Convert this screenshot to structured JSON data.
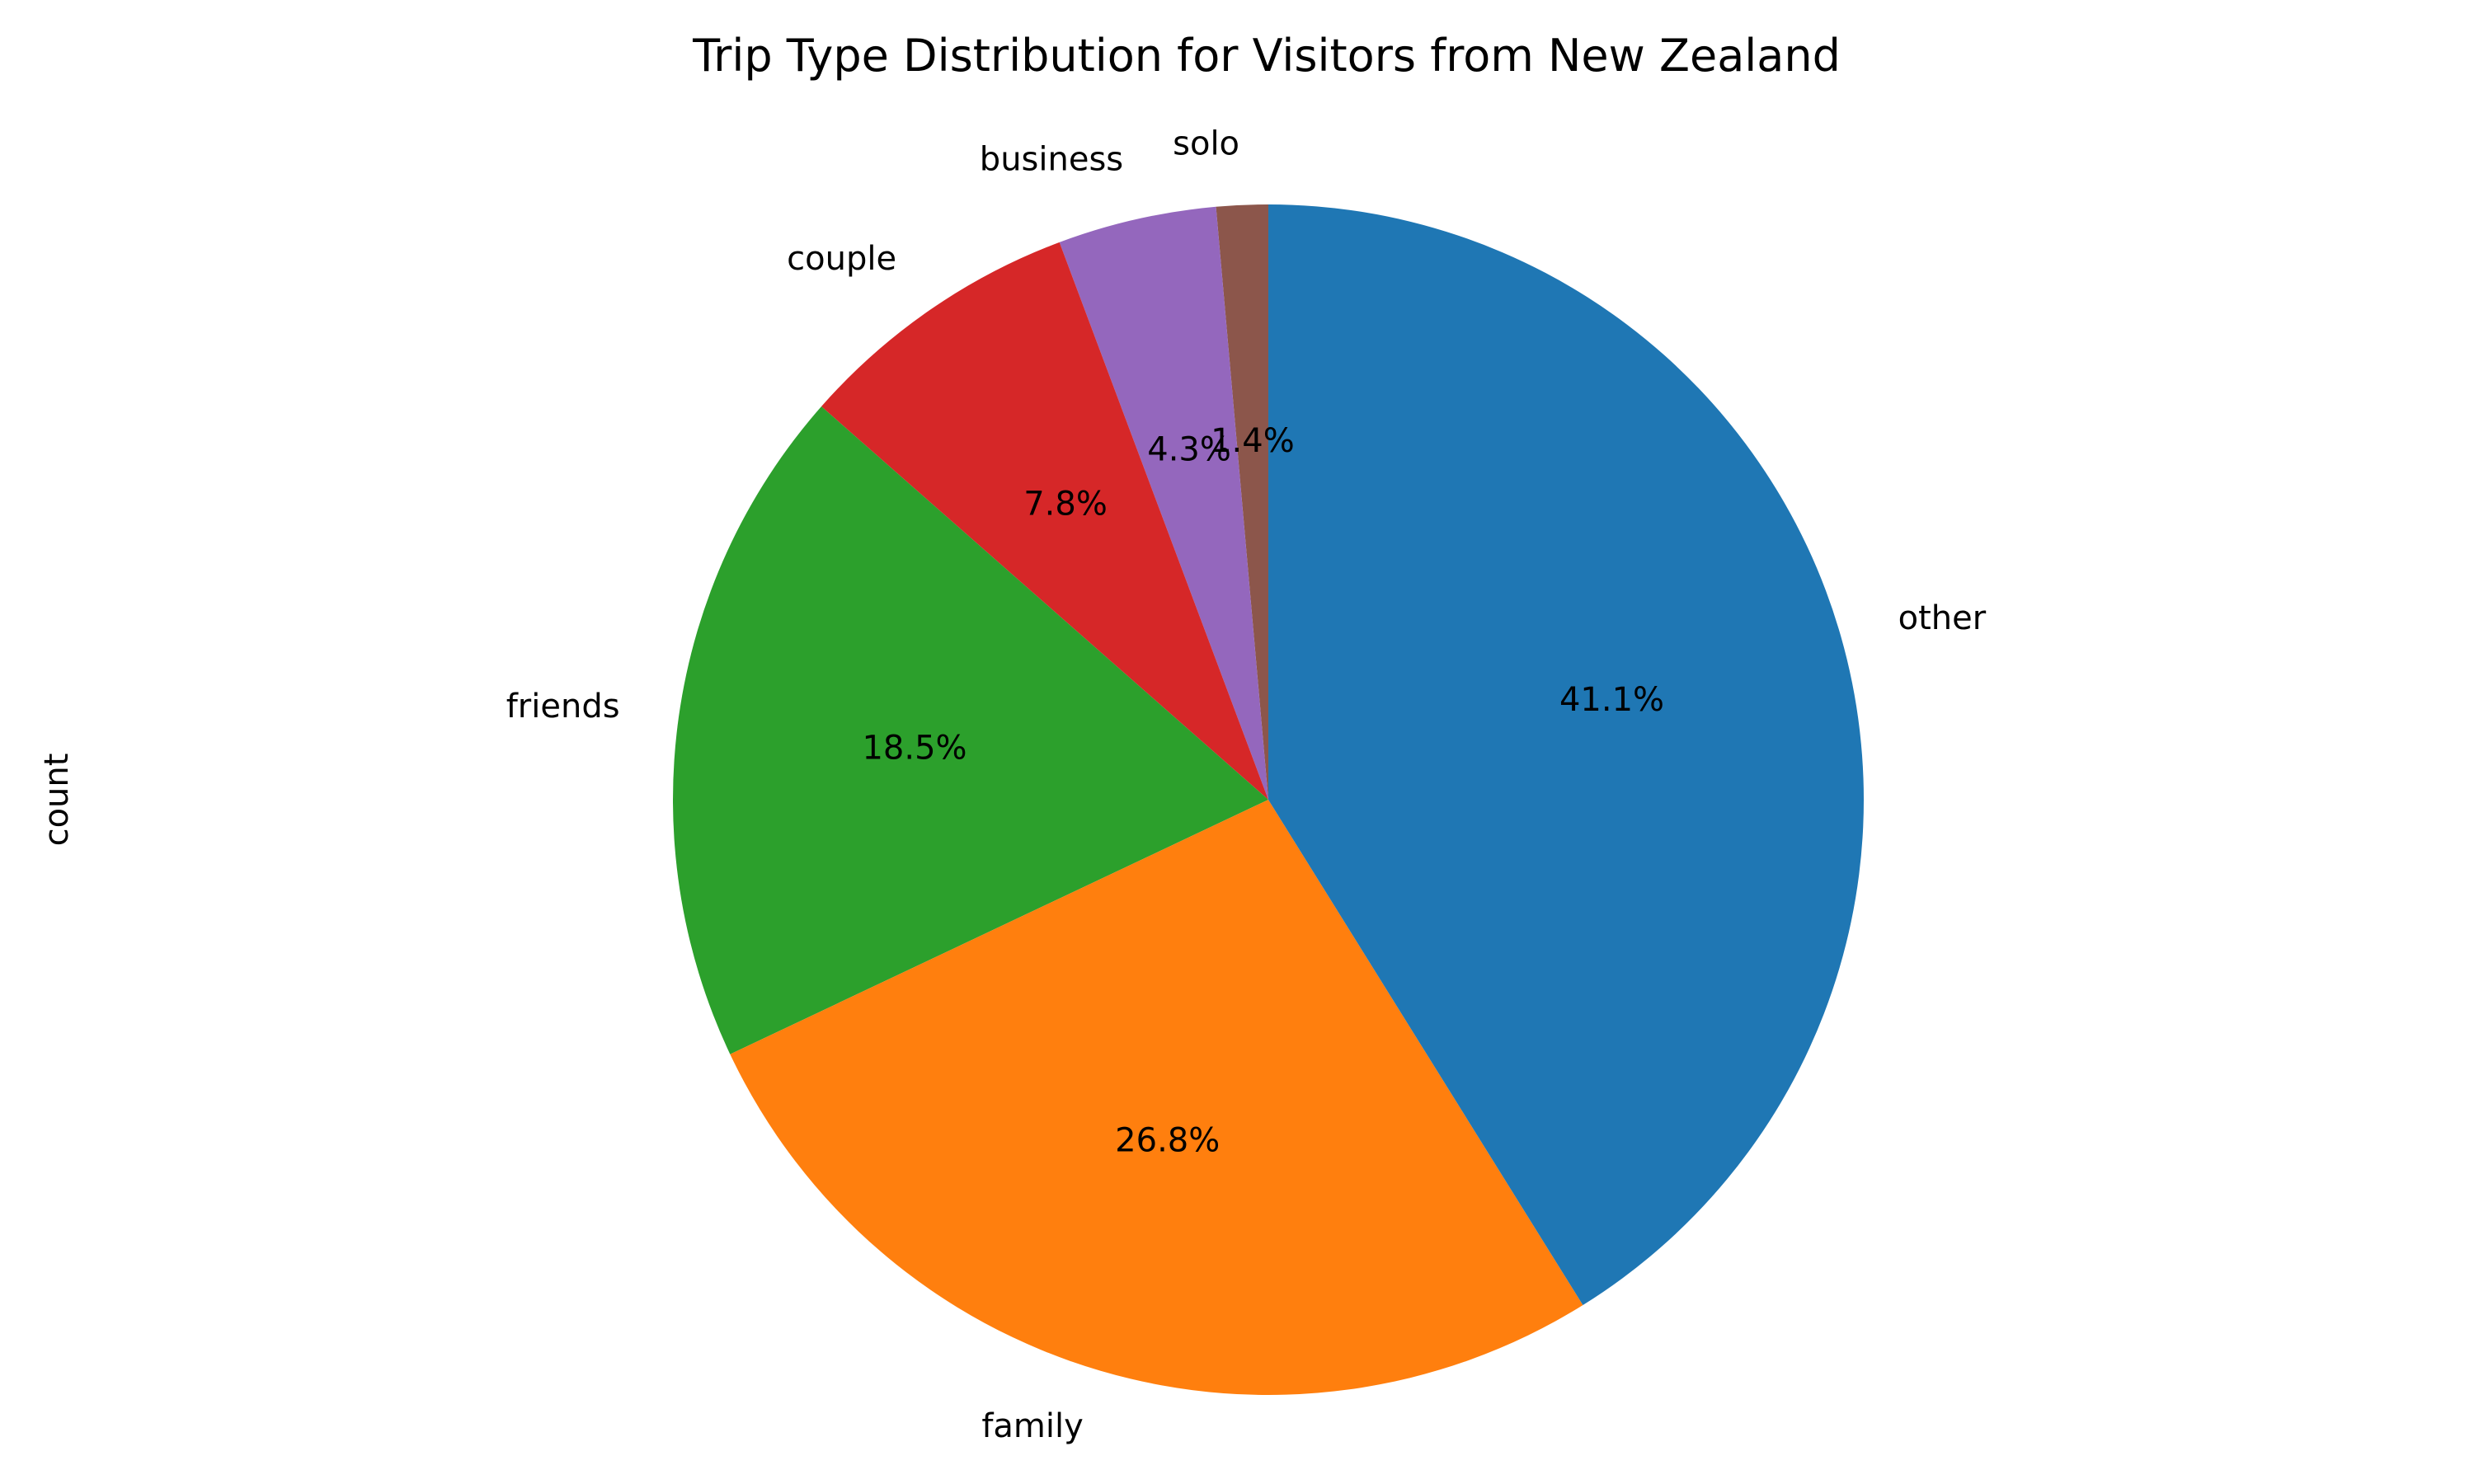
{
  "chart_data": {
    "type": "pie",
    "title": "Trip Type Distribution for Visitors from New Zealand",
    "ylabel": "count",
    "start_angle_deg": 90,
    "direction": "counterclockwise",
    "categories": [
      "solo",
      "business",
      "couple",
      "friends",
      "family",
      "other"
    ],
    "values": [
      1.4,
      4.3,
      7.8,
      18.5,
      26.8,
      41.1
    ],
    "value_labels": [
      "1.4%",
      "4.3%",
      "7.8%",
      "18.5%",
      "26.8%",
      "41.1%"
    ],
    "colors": [
      "#8c564b",
      "#9467bd",
      "#d62728",
      "#2ca02c",
      "#ff7f0e",
      "#1f77b4"
    ]
  }
}
